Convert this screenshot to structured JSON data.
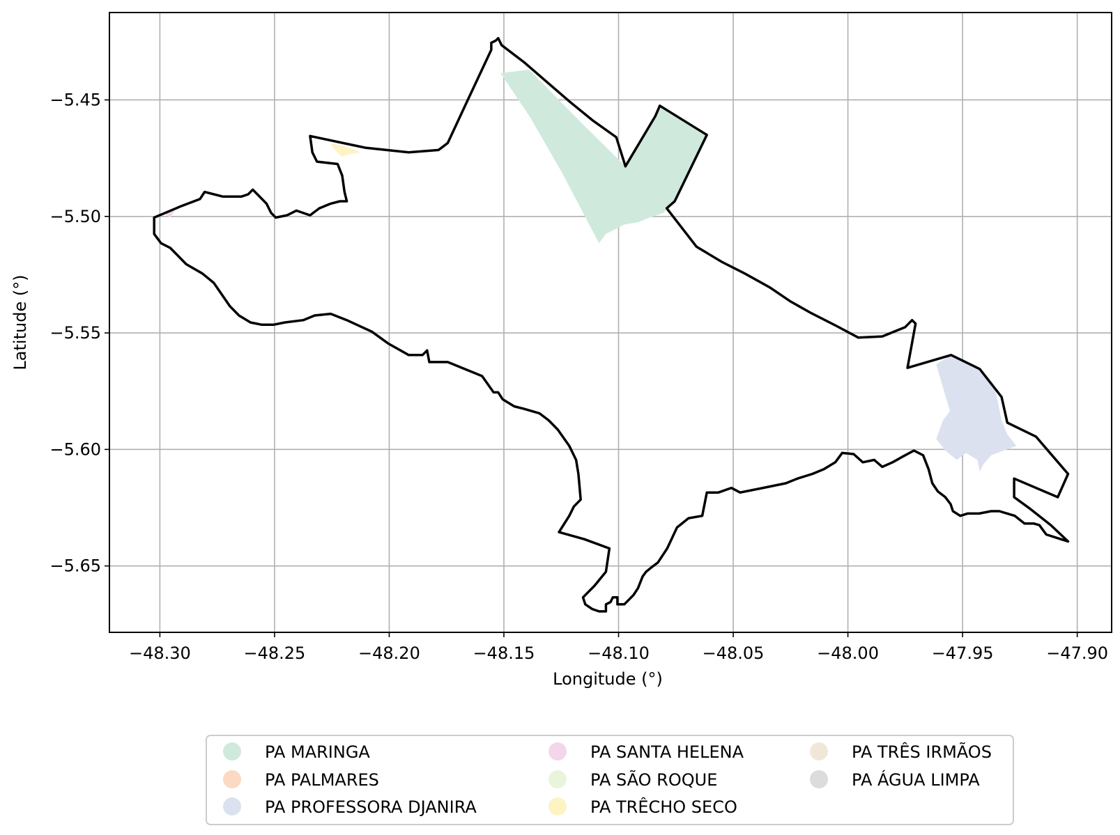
{
  "chart_data": {
    "type": "map",
    "xlabel": "Longitude (°)",
    "ylabel": "Latitude (°)",
    "xlim": [
      -48.322,
      -47.885
    ],
    "ylim": [
      -5.6785,
      -5.4125
    ],
    "grid": true,
    "x_ticks": [
      {
        "value": -48.3,
        "label": "−48.30"
      },
      {
        "value": -48.25,
        "label": "−48.25"
      },
      {
        "value": -48.2,
        "label": "−48.20"
      },
      {
        "value": -48.15,
        "label": "−48.15"
      },
      {
        "value": -48.1,
        "label": "−48.10"
      },
      {
        "value": -48.05,
        "label": "−48.05"
      },
      {
        "value": -48.0,
        "label": "−48.00"
      },
      {
        "value": -47.95,
        "label": "−47.95"
      },
      {
        "value": -47.9,
        "label": "−47.90"
      }
    ],
    "y_ticks": [
      {
        "value": -5.45,
        "label": "−5.45"
      },
      {
        "value": -5.5,
        "label": "−5.50"
      },
      {
        "value": -5.55,
        "label": "−5.55"
      },
      {
        "value": -5.6,
        "label": "−5.60"
      },
      {
        "value": -5.65,
        "label": "−5.65"
      }
    ],
    "boundary_color": "#000000",
    "boundary": [
      [
        -48.151,
        -5.4265
      ],
      [
        -48.141,
        -5.434
      ],
      [
        -48.131,
        -5.4425
      ],
      [
        -48.121,
        -5.451
      ],
      [
        -48.111,
        -5.459
      ],
      [
        -48.101,
        -5.466
      ],
      [
        -48.097,
        -5.4785
      ],
      [
        -48.084,
        -5.457
      ],
      [
        -48.082,
        -5.4525
      ],
      [
        -48.0615,
        -5.465
      ],
      [
        -48.0755,
        -5.4935
      ],
      [
        -48.079,
        -5.4965
      ],
      [
        -48.066,
        -5.513
      ],
      [
        -48.055,
        -5.5195
      ],
      [
        -48.045,
        -5.5245
      ],
      [
        -48.034,
        -5.5305
      ],
      [
        -48.025,
        -5.5365
      ],
      [
        -48.016,
        -5.5415
      ],
      [
        -48.005,
        -5.547
      ],
      [
        -47.9955,
        -5.552
      ],
      [
        -47.985,
        -5.5515
      ],
      [
        -47.975,
        -5.5475
      ],
      [
        -47.972,
        -5.5445
      ],
      [
        -47.9705,
        -5.546
      ],
      [
        -47.974,
        -5.565
      ],
      [
        -47.955,
        -5.5595
      ],
      [
        -47.9425,
        -5.5655
      ],
      [
        -47.933,
        -5.5775
      ],
      [
        -47.9305,
        -5.5885
      ],
      [
        -47.918,
        -5.5945
      ],
      [
        -47.911,
        -5.6025
      ],
      [
        -47.904,
        -5.6105
      ],
      [
        -47.9085,
        -5.6205
      ],
      [
        -47.9275,
        -5.6125
      ],
      [
        -47.9275,
        -5.6205
      ],
      [
        -47.9205,
        -5.6255
      ],
      [
        -47.9115,
        -5.6325
      ],
      [
        -47.904,
        -5.6395
      ],
      [
        -47.9135,
        -5.6365
      ],
      [
        -47.9165,
        -5.6325
      ],
      [
        -47.919,
        -5.6318
      ],
      [
        -47.923,
        -5.6318
      ],
      [
        -47.9272,
        -5.6285
      ],
      [
        -47.934,
        -5.6265
      ],
      [
        -47.9375,
        -5.6265
      ],
      [
        -47.9428,
        -5.6275
      ],
      [
        -47.9478,
        -5.6275
      ],
      [
        -47.951,
        -5.6285
      ],
      [
        -47.9542,
        -5.6265
      ],
      [
        -47.9552,
        -5.6235
      ],
      [
        -47.9575,
        -5.6205
      ],
      [
        -47.9608,
        -5.618
      ],
      [
        -47.9632,
        -5.6145
      ],
      [
        -47.9648,
        -5.6085
      ],
      [
        -47.9672,
        -5.6025
      ],
      [
        -47.9712,
        -5.6005
      ],
      [
        -47.976,
        -5.603
      ],
      [
        -47.9805,
        -5.6055
      ],
      [
        -47.985,
        -5.6075
      ],
      [
        -47.9885,
        -5.6045
      ],
      [
        -47.9935,
        -5.6055
      ],
      [
        -47.9975,
        -5.602
      ],
      [
        -48.0025,
        -5.6015
      ],
      [
        -48.0055,
        -5.6055
      ],
      [
        -48.0105,
        -5.6085
      ],
      [
        -48.0155,
        -5.6105
      ],
      [
        -48.022,
        -5.6125
      ],
      [
        -48.027,
        -5.6145
      ],
      [
        -48.037,
        -5.6165
      ],
      [
        -48.047,
        -5.6185
      ],
      [
        -48.0508,
        -5.6165
      ],
      [
        -48.0565,
        -5.6185
      ],
      [
        -48.0615,
        -5.6185
      ],
      [
        -48.0635,
        -5.6285
      ],
      [
        -48.0695,
        -5.6295
      ],
      [
        -48.0745,
        -5.6335
      ],
      [
        -48.0788,
        -5.6425
      ],
      [
        -48.0828,
        -5.6485
      ],
      [
        -48.0855,
        -5.6505
      ],
      [
        -48.088,
        -5.6525
      ],
      [
        -48.0895,
        -5.6545
      ],
      [
        -48.0915,
        -5.6595
      ],
      [
        -48.0935,
        -5.6625
      ],
      [
        -48.0955,
        -5.6645
      ],
      [
        -48.0975,
        -5.6665
      ],
      [
        -48.1005,
        -5.6665
      ],
      [
        -48.1005,
        -5.6635
      ],
      [
        -48.1025,
        -5.6635
      ],
      [
        -48.1035,
        -5.6655
      ],
      [
        -48.1055,
        -5.6665
      ],
      [
        -48.1055,
        -5.6695
      ],
      [
        -48.1085,
        -5.6695
      ],
      [
        -48.1115,
        -5.6685
      ],
      [
        -48.1145,
        -5.6665
      ],
      [
        -48.1155,
        -5.6635
      ],
      [
        -48.1105,
        -5.6585
      ],
      [
        -48.1055,
        -5.6525
      ],
      [
        -48.104,
        -5.6425
      ],
      [
        -48.115,
        -5.6385
      ],
      [
        -48.126,
        -5.6355
      ],
      [
        -48.1215,
        -5.6285
      ],
      [
        -48.1195,
        -5.6245
      ],
      [
        -48.1165,
        -5.6215
      ],
      [
        -48.1175,
        -5.6105
      ],
      [
        -48.1185,
        -5.6045
      ],
      [
        -48.1215,
        -5.5985
      ],
      [
        -48.1265,
        -5.5915
      ],
      [
        -48.1305,
        -5.5875
      ],
      [
        -48.1345,
        -5.5845
      ],
      [
        -48.1415,
        -5.5825
      ],
      [
        -48.1455,
        -5.5815
      ],
      [
        -48.1505,
        -5.5785
      ],
      [
        -48.1525,
        -5.5755
      ],
      [
        -48.1545,
        -5.5755
      ],
      [
        -48.1595,
        -5.5685
      ],
      [
        -48.1745,
        -5.5625
      ],
      [
        -48.1825,
        -5.5625
      ],
      [
        -48.1835,
        -5.5575
      ],
      [
        -48.1855,
        -5.5595
      ],
      [
        -48.1915,
        -5.5595
      ],
      [
        -48.2005,
        -5.5545
      ],
      [
        -48.2075,
        -5.5495
      ],
      [
        -48.2185,
        -5.5445
      ],
      [
        -48.2255,
        -5.5418
      ],
      [
        -48.2325,
        -5.5425
      ],
      [
        -48.2375,
        -5.5445
      ],
      [
        -48.2455,
        -5.5455
      ],
      [
        -48.2505,
        -5.5465
      ],
      [
        -48.2555,
        -5.5465
      ],
      [
        -48.2605,
        -5.5455
      ],
      [
        -48.2655,
        -5.5425
      ],
      [
        -48.2695,
        -5.5385
      ],
      [
        -48.2765,
        -5.5285
      ],
      [
        -48.2815,
        -5.5245
      ],
      [
        -48.2885,
        -5.5205
      ],
      [
        -48.2955,
        -5.5135
      ],
      [
        -48.2995,
        -5.5115
      ],
      [
        -48.3025,
        -5.5075
      ],
      [
        -48.3025,
        -5.5005
      ],
      [
        -48.2905,
        -5.4955
      ],
      [
        -48.2825,
        -5.4925
      ],
      [
        -48.2805,
        -5.4895
      ],
      [
        -48.2725,
        -5.4915
      ],
      [
        -48.2645,
        -5.4915
      ],
      [
        -48.2615,
        -5.4905
      ],
      [
        -48.2595,
        -5.4885
      ],
      [
        -48.2535,
        -5.4945
      ],
      [
        -48.2515,
        -5.4985
      ],
      [
        -48.2495,
        -5.5005
      ],
      [
        -48.2445,
        -5.4995
      ],
      [
        -48.2405,
        -5.4975
      ],
      [
        -48.2345,
        -5.4995
      ],
      [
        -48.2305,
        -5.4965
      ],
      [
        -48.2255,
        -5.4945
      ],
      [
        -48.2215,
        -5.4935
      ],
      [
        -48.2185,
        -5.4935
      ],
      [
        -48.2195,
        -5.4895
      ],
      [
        -48.2205,
        -5.4825
      ],
      [
        -48.2225,
        -5.4775
      ],
      [
        -48.2315,
        -5.4765
      ],
      [
        -48.2335,
        -5.4725
      ],
      [
        -48.2345,
        -5.4655
      ],
      [
        -48.2105,
        -5.4705
      ],
      [
        -48.1915,
        -5.4725
      ],
      [
        -48.1785,
        -5.4715
      ],
      [
        -48.1745,
        -5.4685
      ],
      [
        -48.1655,
        -5.4495
      ],
      [
        -48.1555,
        -5.4285
      ],
      [
        -48.1555,
        -5.4255
      ],
      [
        -48.1535,
        -5.4245
      ],
      [
        -48.1525,
        -5.4235
      ],
      [
        -48.151,
        -5.4265
      ]
    ],
    "legend_position": "below",
    "series": [
      {
        "name": "PA MARINGA",
        "color": "#cfeadc"
      },
      {
        "name": "PA PALMARES",
        "color": "#fbd9c3"
      },
      {
        "name": "PA PROFESSORA DJANIRA",
        "color": "#dce1ef"
      },
      {
        "name": "PA SANTA HELENA",
        "color": "#f3d6ea"
      },
      {
        "name": "PA SÃO ROQUE",
        "color": "#e9f5da"
      },
      {
        "name": "PA TRÊCHO SECO",
        "color": "#fdf3c3"
      },
      {
        "name": "PA TRÊS IRMÃOS",
        "color": "#f1e7d8"
      },
      {
        "name": "PA ÁGUA LIMPA",
        "color": "#dcdcdc"
      }
    ],
    "regions": [
      {
        "name": "PA MARINGA",
        "color": "#cfeadc",
        "points": [
          [
            -48.1515,
            -5.4385
          ],
          [
            -48.139,
            -5.437
          ],
          [
            -48.1155,
            -5.4605
          ],
          [
            -48.097,
            -5.4785
          ],
          [
            -48.084,
            -5.457
          ],
          [
            -48.082,
            -5.4525
          ],
          [
            -48.0615,
            -5.465
          ],
          [
            -48.0755,
            -5.4935
          ],
          [
            -48.0805,
            -5.4985
          ],
          [
            -48.0865,
            -5.5005
          ],
          [
            -48.0915,
            -5.5025
          ],
          [
            -48.0975,
            -5.5035
          ],
          [
            -48.1055,
            -5.5075
          ],
          [
            -48.1085,
            -5.5115
          ],
          [
            -48.1245,
            -5.4815
          ],
          [
            -48.1385,
            -5.4575
          ],
          [
            -48.1515,
            -5.4385
          ]
        ]
      },
      {
        "name": "PA PROFESSORA DJANIRA",
        "color": "#dce1ef",
        "points": [
          [
            -47.9615,
            -5.5635
          ],
          [
            -47.955,
            -5.5595
          ],
          [
            -47.9425,
            -5.5655
          ],
          [
            -47.9355,
            -5.5755
          ],
          [
            -47.933,
            -5.5875
          ],
          [
            -47.9305,
            -5.5935
          ],
          [
            -47.9265,
            -5.5985
          ],
          [
            -47.9375,
            -5.6025
          ],
          [
            -47.941,
            -5.6065
          ],
          [
            -47.9425,
            -5.6095
          ],
          [
            -47.9435,
            -5.6045
          ],
          [
            -47.9485,
            -5.6015
          ],
          [
            -47.9525,
            -5.6045
          ],
          [
            -47.9575,
            -5.6005
          ],
          [
            -47.9615,
            -5.5955
          ],
          [
            -47.9585,
            -5.5875
          ],
          [
            -47.9555,
            -5.5835
          ],
          [
            -47.9585,
            -5.5735
          ],
          [
            -47.9615,
            -5.5635
          ]
        ]
      },
      {
        "name": "PA TRÊCHO SECO",
        "color": "#fdf3c3",
        "points": [
          [
            -48.2255,
            -5.4685
          ],
          [
            -48.2175,
            -5.4705
          ],
          [
            -48.2125,
            -5.4725
          ],
          [
            -48.2185,
            -5.4735
          ],
          [
            -48.2205,
            -5.4745
          ],
          [
            -48.2225,
            -5.4725
          ],
          [
            -48.2245,
            -5.4705
          ],
          [
            -48.2255,
            -5.4685
          ]
        ]
      },
      {
        "name": "PA SANTA HELENA",
        "color": "#f3d6ea",
        "points": [
          [
            -48.2985,
            -5.4985
          ],
          [
            -48.2935,
            -5.4975
          ],
          [
            -48.2955,
            -5.5005
          ],
          [
            -48.2985,
            -5.4985
          ]
        ]
      }
    ]
  }
}
